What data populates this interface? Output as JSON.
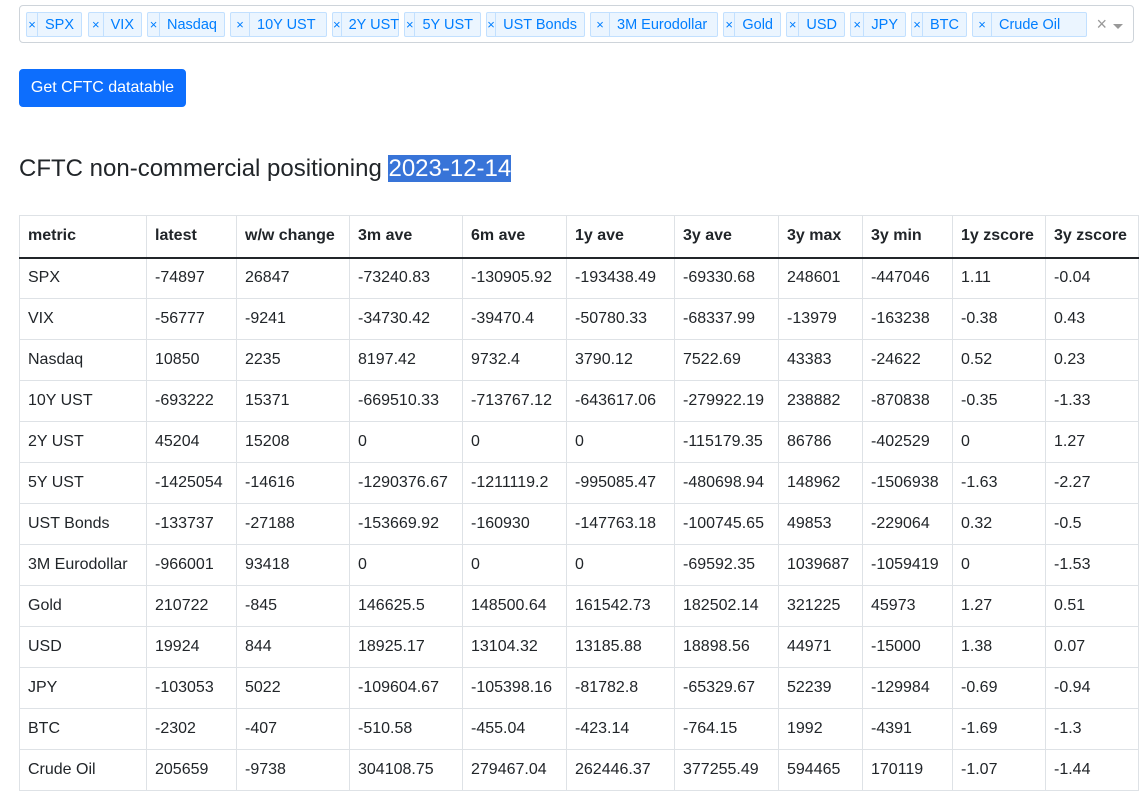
{
  "selector": {
    "tags": [
      "SPX",
      "VIX",
      "Nasdaq",
      "10Y UST",
      "2Y UST",
      "5Y UST",
      "UST Bonds",
      "3M Eurodollar",
      "Gold",
      "USD",
      "JPY",
      "BTC",
      "Crude Oil"
    ],
    "remove_glyph": "×",
    "clear_glyph": "×"
  },
  "button": {
    "label": "Get CFTC datatable"
  },
  "heading": {
    "title": "CFTC non-commercial positioning",
    "date": "2023-12-14"
  },
  "table": {
    "columns": [
      "metric",
      "latest",
      "w/w change",
      "3m ave",
      "6m ave",
      "1y ave",
      "3y ave",
      "3y max",
      "3y min",
      "1y zscore",
      "3y zscore"
    ],
    "rows": [
      [
        "SPX",
        "-74897",
        "26847",
        "-73240.83",
        "-130905.92",
        "-193438.49",
        "-69330.68",
        "248601",
        "-447046",
        "1.11",
        "-0.04"
      ],
      [
        "VIX",
        "-56777",
        "-9241",
        "-34730.42",
        "-39470.4",
        "-50780.33",
        "-68337.99",
        "-13979",
        "-163238",
        "-0.38",
        "0.43"
      ],
      [
        "Nasdaq",
        "10850",
        "2235",
        "8197.42",
        "9732.4",
        "3790.12",
        "7522.69",
        "43383",
        "-24622",
        "0.52",
        "0.23"
      ],
      [
        "10Y UST",
        "-693222",
        "15371",
        "-669510.33",
        "-713767.12",
        "-643617.06",
        "-279922.19",
        "238882",
        "-870838",
        "-0.35",
        "-1.33"
      ],
      [
        "2Y UST",
        "45204",
        "15208",
        "0",
        "0",
        "0",
        "-115179.35",
        "86786",
        "-402529",
        "0",
        "1.27"
      ],
      [
        "5Y UST",
        "-1425054",
        "-14616",
        "-1290376.67",
        "-1211119.2",
        "-995085.47",
        "-480698.94",
        "148962",
        "-1506938",
        "-1.63",
        "-2.27"
      ],
      [
        "UST Bonds",
        "-133737",
        "-27188",
        "-153669.92",
        "-160930",
        "-147763.18",
        "-100745.65",
        "49853",
        "-229064",
        "0.32",
        "-0.5"
      ],
      [
        "3M Eurodollar",
        "-966001",
        "93418",
        "0",
        "0",
        "0",
        "-69592.35",
        "1039687",
        "-1059419",
        "0",
        "-1.53"
      ],
      [
        "Gold",
        "210722",
        "-845",
        "146625.5",
        "148500.64",
        "161542.73",
        "182502.14",
        "321225",
        "45973",
        "1.27",
        "0.51"
      ],
      [
        "USD",
        "19924",
        "844",
        "18925.17",
        "13104.32",
        "13185.88",
        "18898.56",
        "44971",
        "-15000",
        "1.38",
        "0.07"
      ],
      [
        "JPY",
        "-103053",
        "5022",
        "-109604.67",
        "-105398.16",
        "-81782.8",
        "-65329.67",
        "52239",
        "-129984",
        "-0.69",
        "-0.94"
      ],
      [
        "BTC",
        "-2302",
        "-407",
        "-510.58",
        "-455.04",
        "-423.14",
        "-764.15",
        "1992",
        "-4391",
        "-1.69",
        "-1.3"
      ],
      [
        "Crude Oil",
        "205659",
        "-9738",
        "304108.75",
        "279467.04",
        "262446.37",
        "377255.49",
        "594465",
        "170119",
        "-1.07",
        "-1.44"
      ]
    ]
  }
}
